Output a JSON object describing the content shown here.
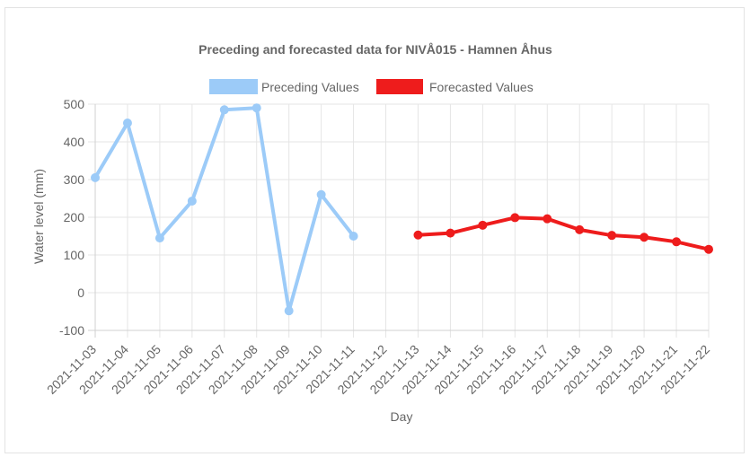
{
  "chart_data": {
    "type": "line",
    "title": "Preceding and forecasted data for NIVÅ015 - Hamnen Åhus",
    "xlabel": "Day",
    "ylabel": "Water level (mm)",
    "ylim": [
      -100,
      500
    ],
    "yticks": [
      500,
      400,
      300,
      200,
      100,
      0,
      -100
    ],
    "grid": true,
    "legend_position": "top",
    "categories": [
      "2021-11-03",
      "2021-11-04",
      "2021-11-05",
      "2021-11-06",
      "2021-11-07",
      "2021-11-08",
      "2021-11-09",
      "2021-11-10",
      "2021-11-11",
      "2021-11-12",
      "2021-11-13",
      "2021-11-14",
      "2021-11-15",
      "2021-11-16",
      "2021-11-17",
      "2021-11-18",
      "2021-11-19",
      "2021-11-20",
      "2021-11-21",
      "2021-11-22"
    ],
    "series": [
      {
        "name": "Preceding Values",
        "color": "#9ccbf8",
        "values": [
          305,
          450,
          145,
          243,
          485,
          490,
          -48,
          260,
          150,
          null,
          null,
          null,
          null,
          null,
          null,
          null,
          null,
          null,
          null,
          null
        ]
      },
      {
        "name": "Forecasted Values",
        "color": "#ee1c1c",
        "values": [
          null,
          null,
          null,
          null,
          null,
          null,
          null,
          null,
          null,
          null,
          153,
          158,
          179,
          199,
          196,
          167,
          152,
          147,
          135,
          115
        ]
      }
    ]
  }
}
